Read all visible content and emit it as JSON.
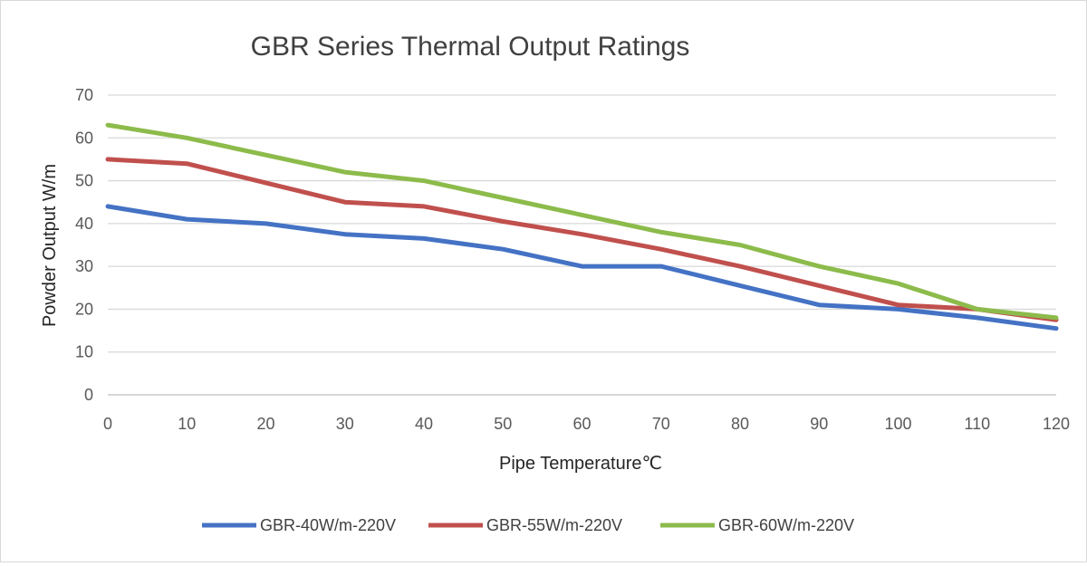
{
  "chart_data": {
    "type": "line",
    "title": "GBR Series Thermal Output Ratings",
    "xlabel": "Pipe Temperature℃",
    "ylabel": "Powder Output W/m",
    "x": [
      0,
      10,
      20,
      30,
      40,
      50,
      60,
      70,
      80,
      90,
      100,
      110,
      120
    ],
    "x_ticks": [
      "0",
      "10",
      "20",
      "30",
      "40",
      "50",
      "60",
      "70",
      "80",
      "90",
      "100",
      "110",
      "120"
    ],
    "y_ticks": [
      "0",
      "10",
      "20",
      "30",
      "40",
      "50",
      "60",
      "70"
    ],
    "xlim": [
      0,
      120
    ],
    "ylim": [
      0,
      70
    ],
    "grid": true,
    "legend_position": "bottom",
    "series": [
      {
        "name": "GBR-40W/m-220V",
        "color": "#4472c4",
        "values": [
          44,
          41,
          40,
          37.5,
          36.5,
          34,
          30,
          30,
          25.5,
          21,
          20,
          18,
          15.5
        ]
      },
      {
        "name": "GBR-55W/m-220V",
        "color": "#c0504d",
        "values": [
          55,
          54,
          49.5,
          45,
          44,
          40.5,
          37.5,
          34,
          30,
          25.5,
          21,
          20,
          17.5
        ]
      },
      {
        "name": "GBR-60W/m-220V",
        "color": "#8cbb4b",
        "values": [
          63,
          60,
          56,
          52,
          50,
          46,
          42,
          38,
          35,
          30,
          26,
          20,
          18
        ]
      }
    ]
  }
}
